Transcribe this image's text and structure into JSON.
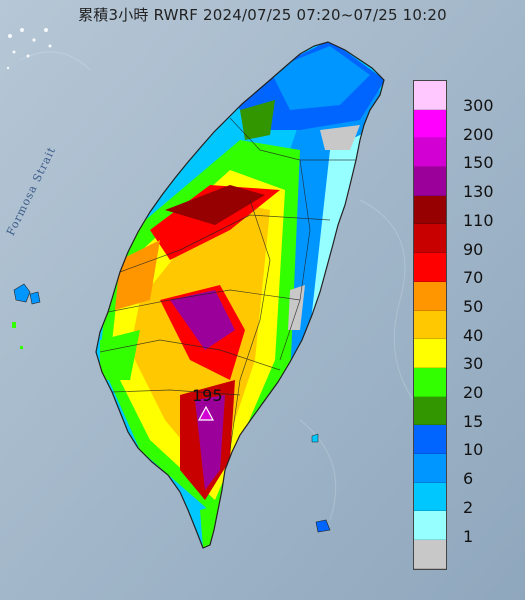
{
  "title": "累積3小時 RWRF 2024/07/25 07:20~07/25 10:20",
  "strait_label": "Formosa Strait",
  "max_marker": {
    "value": "195",
    "symbol": "triangle"
  },
  "legend": {
    "levels": [
      {
        "label": "300",
        "color": "#ffc8ff"
      },
      {
        "label": "200",
        "color": "#ff00ff"
      },
      {
        "label": "150",
        "color": "#d200d2"
      },
      {
        "label": "130",
        "color": "#9b009b"
      },
      {
        "label": "110",
        "color": "#960000"
      },
      {
        "label": "90",
        "color": "#c80000"
      },
      {
        "label": "70",
        "color": "#ff0000"
      },
      {
        "label": "50",
        "color": "#ff9600"
      },
      {
        "label": "40",
        "color": "#ffc800"
      },
      {
        "label": "30",
        "color": "#ffff00"
      },
      {
        "label": "20",
        "color": "#32ff00"
      },
      {
        "label": "15",
        "color": "#329600"
      },
      {
        "label": "10",
        "color": "#0064ff"
      },
      {
        "label": "6",
        "color": "#0096ff"
      },
      {
        "label": "2",
        "color": "#00c8ff"
      },
      {
        "label": "1",
        "color": "#96ffff"
      },
      {
        "label": "",
        "color": "#c8c8c8"
      }
    ]
  }
}
